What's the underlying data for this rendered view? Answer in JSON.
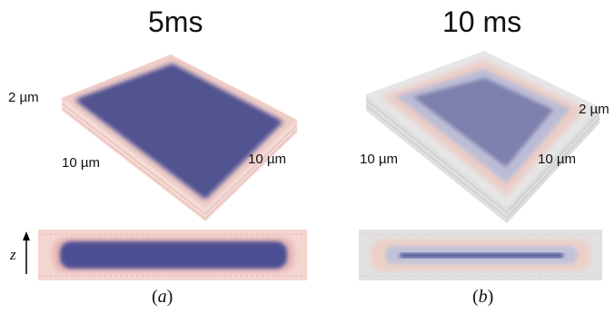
{
  "panels": [
    {
      "title": "5ms",
      "caption_letter": "a",
      "labels": {
        "height": "2 µm",
        "left_edge": "10 µm",
        "right_edge": "10 µm"
      }
    },
    {
      "title": "10 ms",
      "caption_letter": "b",
      "labels": {
        "height": "2 µm",
        "left_edge": "10 µm",
        "right_edge": "10 µm"
      }
    }
  ],
  "axis": {
    "label": "z"
  },
  "colors": {
    "core_a": "#4d4f94",
    "core_b": "#7e80ad",
    "halo": "#efbcb4",
    "frame": "#d8d8d8",
    "thin_line_b": "#3f4c93"
  }
}
